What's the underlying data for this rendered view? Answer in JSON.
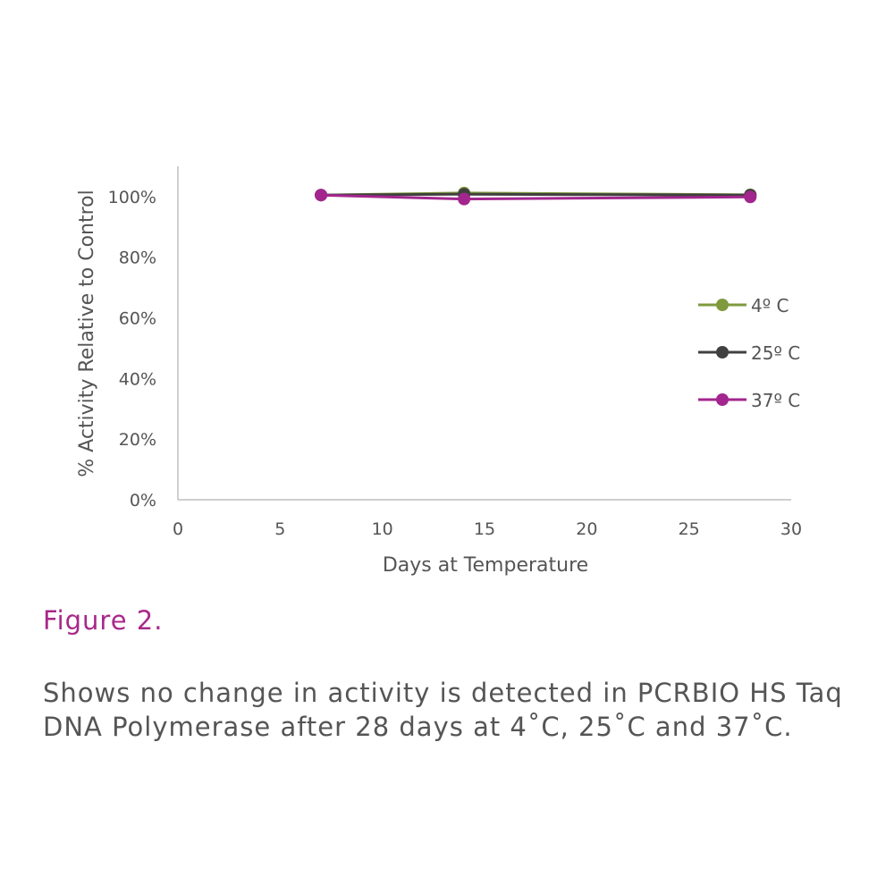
{
  "figure": {
    "label": "Figure 2.",
    "caption_lines": [
      "Shows no change in activity is detected in PCRBIO HS Taq",
      "DNA Polymerase after 28 days at 4˚C, 25˚C and 37˚C."
    ]
  },
  "colors": {
    "axis": "#bfbfbf",
    "text": "#555555",
    "figure_label": "#a8288a"
  },
  "chart_data": {
    "type": "line",
    "xlabel": "Days at Temperature",
    "ylabel": "% Activity Relative to Control",
    "xlim": [
      0,
      30
    ],
    "ylim": [
      0,
      110
    ],
    "x_ticks": [
      0,
      5,
      10,
      15,
      20,
      25,
      30
    ],
    "y_ticks": [
      {
        "value": 0,
        "label": "0%"
      },
      {
        "value": 20,
        "label": "20%"
      },
      {
        "value": 40,
        "label": "40%"
      },
      {
        "value": 60,
        "label": "60%"
      },
      {
        "value": 80,
        "label": "80%"
      },
      {
        "value": 100,
        "label": "100%"
      }
    ],
    "grid": false,
    "legend_position": "right",
    "series": [
      {
        "name": "4º C",
        "color": "#7f9a3d",
        "x": [
          7,
          14,
          28
        ],
        "y": [
          100.5,
          101.2,
          100.6
        ]
      },
      {
        "name": "25º C",
        "color": "#404040",
        "x": [
          7,
          14,
          28
        ],
        "y": [
          100.5,
          100.8,
          100.5
        ]
      },
      {
        "name": "37º C",
        "color": "#a3268e",
        "x": [
          7,
          14,
          28
        ],
        "y": [
          100.5,
          99.2,
          99.9
        ]
      }
    ]
  }
}
